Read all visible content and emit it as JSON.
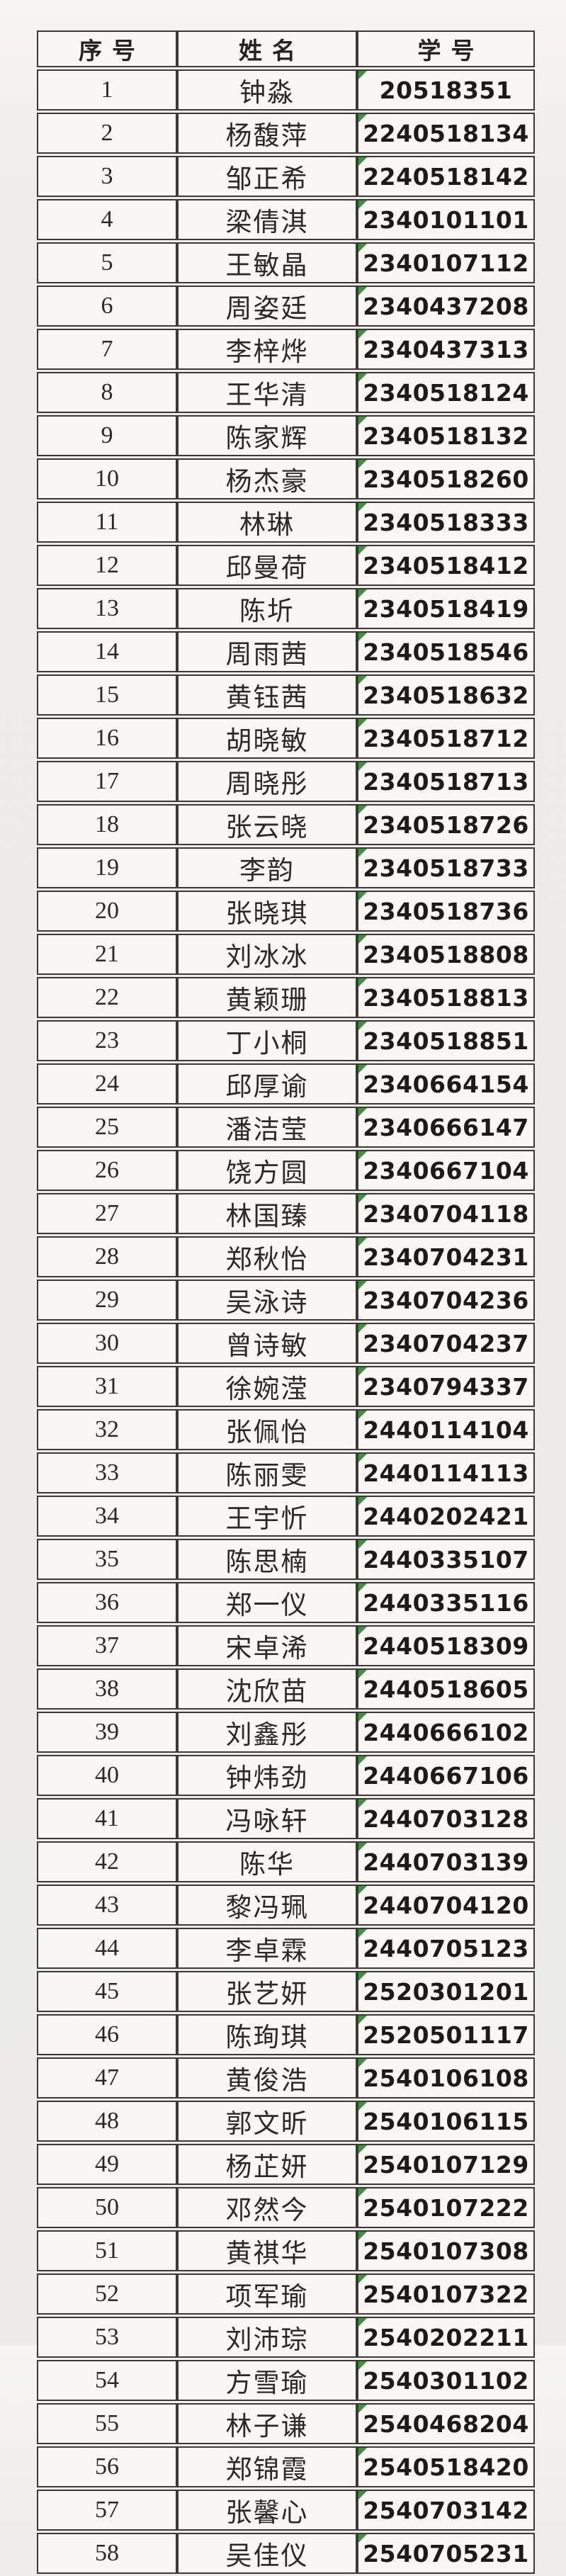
{
  "page": {
    "background_color": "#efedea",
    "cell_background": "#f8f7f4",
    "border_color": "#3b3a38",
    "text_color": "#1c1b1a",
    "error_indicator": {
      "icon": "green-corner-triangle",
      "color": "#3e9141"
    }
  },
  "table": {
    "columns": [
      "序号",
      "姓名",
      "学号"
    ],
    "rows": [
      {
        "no": "1",
        "name": "钟淼",
        "id": "20518351"
      },
      {
        "no": "2",
        "name": "杨馥萍",
        "id": "2240518134"
      },
      {
        "no": "3",
        "name": "邹正希",
        "id": "2240518142"
      },
      {
        "no": "4",
        "name": "梁倩淇",
        "id": "2340101101"
      },
      {
        "no": "5",
        "name": "王敏晶",
        "id": "2340107112"
      },
      {
        "no": "6",
        "name": "周姿廷",
        "id": "2340437208"
      },
      {
        "no": "7",
        "name": "李梓烨",
        "id": "2340437313"
      },
      {
        "no": "8",
        "name": "王华清",
        "id": "2340518124"
      },
      {
        "no": "9",
        "name": "陈家辉",
        "id": "2340518132"
      },
      {
        "no": "10",
        "name": "杨杰豪",
        "id": "2340518260"
      },
      {
        "no": "11",
        "name": "林琳",
        "id": "2340518333"
      },
      {
        "no": "12",
        "name": "邱曼荷",
        "id": "2340518412"
      },
      {
        "no": "13",
        "name": "陈圻",
        "id": "2340518419"
      },
      {
        "no": "14",
        "name": "周雨茜",
        "id": "2340518546"
      },
      {
        "no": "15",
        "name": "黄钰茜",
        "id": "2340518632"
      },
      {
        "no": "16",
        "name": "胡晓敏",
        "id": "2340518712"
      },
      {
        "no": "17",
        "name": "周晓彤",
        "id": "2340518713"
      },
      {
        "no": "18",
        "name": "张云晓",
        "id": "2340518726"
      },
      {
        "no": "19",
        "name": "李韵",
        "id": "2340518733"
      },
      {
        "no": "20",
        "name": "张晓琪",
        "id": "2340518736"
      },
      {
        "no": "21",
        "name": "刘冰冰",
        "id": "2340518808"
      },
      {
        "no": "22",
        "name": "黄颖珊",
        "id": "2340518813"
      },
      {
        "no": "23",
        "name": "丁小桐",
        "id": "2340518851"
      },
      {
        "no": "24",
        "name": "邱厚谕",
        "id": "2340664154"
      },
      {
        "no": "25",
        "name": "潘洁莹",
        "id": "2340666147"
      },
      {
        "no": "26",
        "name": "饶方圆",
        "id": "2340667104"
      },
      {
        "no": "27",
        "name": "林国臻",
        "id": "2340704118"
      },
      {
        "no": "28",
        "name": "郑秋怡",
        "id": "2340704231"
      },
      {
        "no": "29",
        "name": "吴泳诗",
        "id": "2340704236"
      },
      {
        "no": "30",
        "name": "曾诗敏",
        "id": "2340704237"
      },
      {
        "no": "31",
        "name": "徐婉滢",
        "id": "2340794337"
      },
      {
        "no": "32",
        "name": "张佩怡",
        "id": "2440114104"
      },
      {
        "no": "33",
        "name": "陈丽雯",
        "id": "2440114113"
      },
      {
        "no": "34",
        "name": "王宇忻",
        "id": "2440202421"
      },
      {
        "no": "35",
        "name": "陈思楠",
        "id": "2440335107"
      },
      {
        "no": "36",
        "name": "郑一仪",
        "id": "2440335116"
      },
      {
        "no": "37",
        "name": "宋卓浠",
        "id": "2440518309"
      },
      {
        "no": "38",
        "name": "沈欣苗",
        "id": "2440518605"
      },
      {
        "no": "39",
        "name": "刘鑫彤",
        "id": "2440666102"
      },
      {
        "no": "40",
        "name": "钟炜劲",
        "id": "2440667106"
      },
      {
        "no": "41",
        "name": "冯咏轩",
        "id": "2440703128"
      },
      {
        "no": "42",
        "name": "陈华",
        "id": "2440703139"
      },
      {
        "no": "43",
        "name": "黎冯珮",
        "id": "2440704120"
      },
      {
        "no": "44",
        "name": "李卓霖",
        "id": "2440705123"
      },
      {
        "no": "45",
        "name": "张艺妍",
        "id": "2520301201"
      },
      {
        "no": "46",
        "name": "陈珣琪",
        "id": "2520501117"
      },
      {
        "no": "47",
        "name": "黄俊浩",
        "id": "2540106108"
      },
      {
        "no": "48",
        "name": "郭文昕",
        "id": "2540106115"
      },
      {
        "no": "49",
        "name": "杨芷妍",
        "id": "2540107129"
      },
      {
        "no": "50",
        "name": "邓然今",
        "id": "2540107222"
      },
      {
        "no": "51",
        "name": "黄祺华",
        "id": "2540107308"
      },
      {
        "no": "52",
        "name": "项军瑜",
        "id": "2540107322"
      },
      {
        "no": "53",
        "name": "刘沛琮",
        "id": "2540202211"
      },
      {
        "no": "54",
        "name": "方雪瑜",
        "id": "2540301102"
      },
      {
        "no": "55",
        "name": "林子谦",
        "id": "2540468204"
      },
      {
        "no": "56",
        "name": "郑锦霞",
        "id": "2540518420"
      },
      {
        "no": "57",
        "name": "张馨心",
        "id": "2540703142"
      },
      {
        "no": "58",
        "name": "吴佳仪",
        "id": "2540705231"
      }
    ]
  }
}
